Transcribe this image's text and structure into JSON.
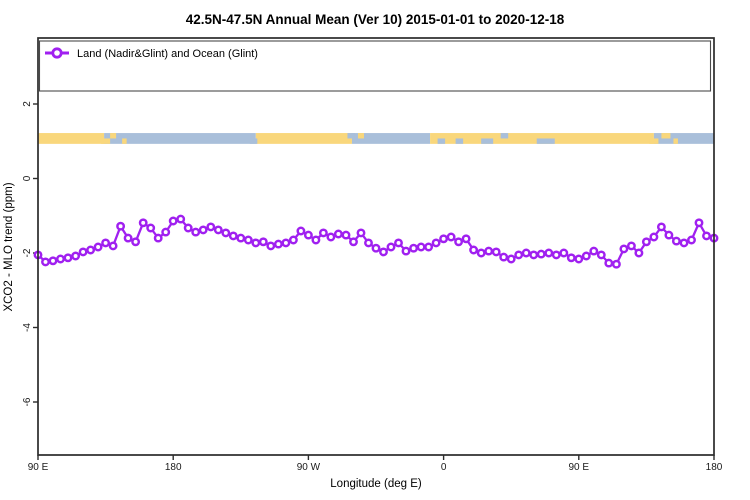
{
  "title": "42.5N-47.5N Annual Mean (Ver 10)   2015-01-01 to 2020-12-18",
  "legend": {
    "label": "Land (Nadir&Glint) and Ocean (Glint)",
    "marker": "open-circle-on-line",
    "marker_color": "#A020F0"
  },
  "colors": {
    "series": "#A020F0",
    "land": "#F9D77C",
    "ocean": "#A9BFDA",
    "frame": "#2b2b2b"
  },
  "chart_data": {
    "type": "line",
    "title": "42.5N-47.5N Annual Mean (Ver 10)   2015-01-01 to 2020-12-18",
    "xlabel": "Longitude (deg E)",
    "ylabel": "XCO2 - MLO trend (ppm)",
    "x_tick_labels": [
      "90 E",
      "180",
      "90 W",
      "0",
      "90 E",
      "180"
    ],
    "x_axis_deg_range": [
      90,
      540
    ],
    "y_ticks": [
      2,
      0,
      -2,
      -4,
      -6
    ],
    "y_tick_labels": [
      "2",
      "0",
      "-2",
      "-4",
      "-6"
    ],
    "ylim": [
      -7.4,
      3.8
    ],
    "grid": false,
    "legend_position": "top-full-width",
    "series": [
      {
        "name": "Land (Nadir&Glint) and Ocean (Glint)",
        "color": "#A020F0",
        "marker": "open-circle",
        "x_deg": [
          90,
          95,
          100,
          105,
          110,
          115,
          120,
          125,
          130,
          135,
          140,
          145,
          150,
          155,
          160,
          165,
          170,
          175,
          180,
          185,
          190,
          195,
          200,
          205,
          210,
          215,
          220,
          225,
          230,
          235,
          240,
          245,
          250,
          255,
          260,
          265,
          270,
          275,
          280,
          285,
          290,
          295,
          300,
          305,
          310,
          315,
          320,
          325,
          330,
          335,
          340,
          345,
          350,
          355,
          360,
          365,
          370,
          375,
          380,
          385,
          390,
          395,
          400,
          405,
          410,
          415,
          420,
          425,
          430,
          435,
          440,
          445,
          450,
          455,
          460,
          465,
          470,
          475,
          480,
          485,
          490,
          495,
          500,
          505,
          510,
          515,
          520,
          525,
          530,
          535,
          540
        ],
        "values": [
          -2.05,
          -2.24,
          -2.21,
          -2.16,
          -2.13,
          -2.08,
          -1.97,
          -1.92,
          -1.84,
          -1.73,
          -1.81,
          -1.28,
          -1.6,
          -1.7,
          -1.19,
          -1.33,
          -1.6,
          -1.44,
          -1.14,
          -1.09,
          -1.33,
          -1.44,
          -1.38,
          -1.3,
          -1.38,
          -1.46,
          -1.54,
          -1.6,
          -1.65,
          -1.73,
          -1.7,
          -1.81,
          -1.76,
          -1.73,
          -1.65,
          -1.41,
          -1.52,
          -1.65,
          -1.46,
          -1.57,
          -1.49,
          -1.52,
          -1.7,
          -1.46,
          -1.73,
          -1.87,
          -1.97,
          -1.84,
          -1.73,
          -1.95,
          -1.87,
          -1.84,
          -1.84,
          -1.73,
          -1.62,
          -1.57,
          -1.7,
          -1.62,
          -1.92,
          -2.0,
          -1.95,
          -1.97,
          -2.11,
          -2.16,
          -2.05,
          -2.0,
          -2.05,
          -2.03,
          -2.0,
          -2.05,
          -2.0,
          -2.13,
          -2.16,
          -2.08,
          -1.95,
          -2.05,
          -2.27,
          -2.3,
          -1.89,
          -1.81,
          -2.0,
          -1.7,
          -1.57,
          -1.3,
          -1.52,
          -1.68,
          -1.73,
          -1.65,
          -1.19,
          -1.54,
          -1.6
        ]
      }
    ],
    "map_band": {
      "description": "land/ocean strip along 45N",
      "ppm_top": 1.22,
      "ppm_bottom": 0.93,
      "land_color": "#F9D77C",
      "ocean_color": "#A9BFDA",
      "segments": [
        {
          "from": 90,
          "to": 134,
          "kind": "land"
        },
        {
          "from": 134,
          "to": 235,
          "kind": "ocean"
        },
        {
          "from": 235,
          "to": 299,
          "kind": "land"
        },
        {
          "from": 299,
          "to": 351,
          "kind": "ocean"
        },
        {
          "from": 351,
          "to": 500,
          "kind": "land"
        },
        {
          "from": 500,
          "to": 540,
          "kind": "ocean"
        }
      ],
      "patches": [
        {
          "from": 132,
          "to": 138,
          "kind": "land",
          "half": "bottom"
        },
        {
          "from": 138,
          "to": 142,
          "kind": "land",
          "half": "top"
        },
        {
          "from": 146,
          "to": 149,
          "kind": "land",
          "half": "bottom"
        },
        {
          "from": 231,
          "to": 236,
          "kind": "ocean",
          "half": "bottom"
        },
        {
          "from": 296,
          "to": 301,
          "kind": "ocean",
          "half": "top"
        },
        {
          "from": 303,
          "to": 307,
          "kind": "land",
          "half": "top"
        },
        {
          "from": 356,
          "to": 361,
          "kind": "ocean",
          "half": "bottom"
        },
        {
          "from": 368,
          "to": 373,
          "kind": "ocean",
          "half": "bottom"
        },
        {
          "from": 385,
          "to": 393,
          "kind": "ocean",
          "half": "bottom"
        },
        {
          "from": 398,
          "to": 403,
          "kind": "ocean",
          "half": "top"
        },
        {
          "from": 422,
          "to": 434,
          "kind": "ocean",
          "half": "bottom"
        },
        {
          "from": 497,
          "to": 503,
          "kind": "land",
          "half": "bottom"
        },
        {
          "from": 505,
          "to": 511,
          "kind": "land",
          "half": "top"
        },
        {
          "from": 513,
          "to": 516,
          "kind": "land",
          "half": "bottom"
        }
      ]
    }
  }
}
